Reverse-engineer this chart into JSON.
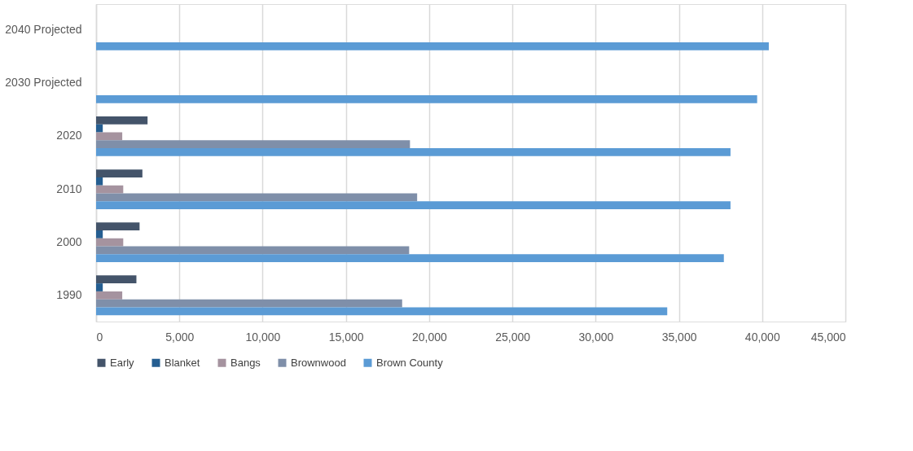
{
  "chart_data": {
    "type": "bar",
    "orientation": "horizontal",
    "categories": [
      "2040 Projected",
      "2030 Projected",
      "2020",
      "2010",
      "2000",
      "1990"
    ],
    "series": [
      {
        "name": "Early",
        "color": "#44546a",
        "values": [
          null,
          null,
          3090,
          2780,
          2610,
          2420
        ]
      },
      {
        "name": "Blanket",
        "color": "#255e91",
        "values": [
          null,
          null,
          400,
          400,
          400,
          400
        ]
      },
      {
        "name": "Bangs",
        "color": "#a5939f",
        "values": [
          null,
          null,
          1570,
          1630,
          1630,
          1570
        ]
      },
      {
        "name": "Brownwood",
        "color": "#7f8fa9",
        "values": [
          null,
          null,
          18850,
          19280,
          18800,
          18380
        ]
      },
      {
        "name": "Brown County",
        "color": "#5b9bd5",
        "values": [
          40400,
          39700,
          38100,
          38100,
          37700,
          34300
        ]
      }
    ],
    "xlim": [
      0,
      45000
    ],
    "xticks": [
      0,
      {
        "value": 5000,
        "label": "5,000"
      },
      {
        "value": 10000,
        "label": "10,000"
      },
      {
        "value": 15000,
        "label": "15,000"
      },
      {
        "value": 20000,
        "label": "20,000"
      },
      {
        "value": 25000,
        "label": "25,000"
      },
      {
        "value": 30000,
        "label": "30,000"
      },
      {
        "value": 35000,
        "label": "35,000"
      },
      {
        "value": 40000,
        "label": "40,000"
      },
      {
        "value": 45000,
        "label": "45,000"
      }
    ],
    "grid": "x",
    "legend": "bottom"
  }
}
